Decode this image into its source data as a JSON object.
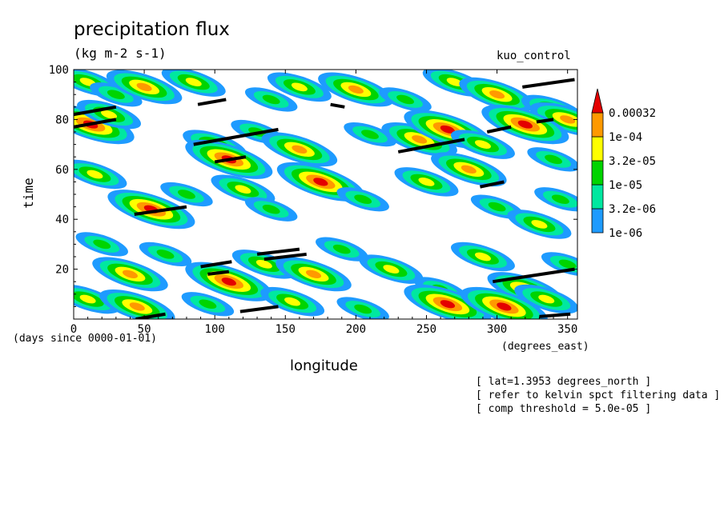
{
  "header": {
    "title": "precipitation flux",
    "units": "(kg m-2 s-1)",
    "run_name": "kuo_control"
  },
  "axes": {
    "xlabel": "longitude",
    "xunits": "(degrees_east)",
    "ylabel": "time",
    "time_units": "(days since 0000-01-01)"
  },
  "notes": {
    "lat": "[ lat=1.3953 degrees_north ]",
    "refer": "[ refer to kelvin spct filtering data ]",
    "threshold": "[ comp threshold = 5.0e-05 ]"
  },
  "chart_data": {
    "type": "heatmap",
    "title": "precipitation flux",
    "xlabel": "longitude",
    "ylabel": "time",
    "xlim": [
      0,
      357
    ],
    "ylim": [
      0,
      100
    ],
    "xticks": [
      0,
      50,
      100,
      150,
      200,
      250,
      300,
      350
    ],
    "yticks": [
      20,
      40,
      60,
      80,
      100
    ],
    "colorbar": {
      "levels": [
        "1e-06",
        "3.2e-06",
        "1e-05",
        "3.2e-05",
        "1e-04",
        "0.00032"
      ],
      "colors": [
        "#1e9bff",
        "#00e8a0",
        "#00d400",
        "#ffff00",
        "#ff9900",
        "#e40000"
      ],
      "extend": "max"
    },
    "contour_blobs": [
      {
        "x": 10,
        "y": 95,
        "level": 3
      },
      {
        "x": 30,
        "y": 90,
        "level": 2
      },
      {
        "x": 50,
        "y": 93,
        "level": 4
      },
      {
        "x": 85,
        "y": 95,
        "level": 3
      },
      {
        "x": 140,
        "y": 88,
        "level": 2
      },
      {
        "x": 160,
        "y": 93,
        "level": 3
      },
      {
        "x": 200,
        "y": 92,
        "level": 4
      },
      {
        "x": 235,
        "y": 88,
        "level": 2
      },
      {
        "x": 270,
        "y": 95,
        "level": 3
      },
      {
        "x": 300,
        "y": 90,
        "level": 4
      },
      {
        "x": 340,
        "y": 84,
        "level": 3
      },
      {
        "x": 350,
        "y": 80,
        "level": 4
      },
      {
        "x": 12,
        "y": 78,
        "level": 5
      },
      {
        "x": 25,
        "y": 82,
        "level": 3
      },
      {
        "x": 100,
        "y": 70,
        "level": 3
      },
      {
        "x": 110,
        "y": 64,
        "level": 5
      },
      {
        "x": 130,
        "y": 75,
        "level": 2
      },
      {
        "x": 160,
        "y": 68,
        "level": 4
      },
      {
        "x": 175,
        "y": 55,
        "level": 5
      },
      {
        "x": 210,
        "y": 74,
        "level": 2
      },
      {
        "x": 245,
        "y": 72,
        "level": 4
      },
      {
        "x": 265,
        "y": 76,
        "level": 5
      },
      {
        "x": 290,
        "y": 70,
        "level": 3
      },
      {
        "x": 320,
        "y": 78,
        "level": 5
      },
      {
        "x": 340,
        "y": 64,
        "level": 2
      },
      {
        "x": 15,
        "y": 58,
        "level": 3
      },
      {
        "x": 55,
        "y": 44,
        "level": 5
      },
      {
        "x": 80,
        "y": 50,
        "level": 2
      },
      {
        "x": 120,
        "y": 52,
        "level": 3
      },
      {
        "x": 140,
        "y": 44,
        "level": 2
      },
      {
        "x": 205,
        "y": 48,
        "level": 2
      },
      {
        "x": 250,
        "y": 55,
        "level": 3
      },
      {
        "x": 280,
        "y": 60,
        "level": 4
      },
      {
        "x": 300,
        "y": 45,
        "level": 2
      },
      {
        "x": 330,
        "y": 38,
        "level": 3
      },
      {
        "x": 345,
        "y": 48,
        "level": 2
      },
      {
        "x": 20,
        "y": 30,
        "level": 2
      },
      {
        "x": 40,
        "y": 18,
        "level": 4
      },
      {
        "x": 65,
        "y": 26,
        "level": 2
      },
      {
        "x": 110,
        "y": 15,
        "level": 5
      },
      {
        "x": 135,
        "y": 22,
        "level": 3
      },
      {
        "x": 170,
        "y": 18,
        "level": 4
      },
      {
        "x": 190,
        "y": 28,
        "level": 2
      },
      {
        "x": 225,
        "y": 20,
        "level": 3
      },
      {
        "x": 260,
        "y": 12,
        "level": 2
      },
      {
        "x": 290,
        "y": 25,
        "level": 3
      },
      {
        "x": 320,
        "y": 12,
        "level": 4
      },
      {
        "x": 350,
        "y": 22,
        "level": 2
      },
      {
        "x": 10,
        "y": 8,
        "level": 3
      },
      {
        "x": 45,
        "y": 5,
        "level": 4
      },
      {
        "x": 95,
        "y": 6,
        "level": 2
      },
      {
        "x": 155,
        "y": 7,
        "level": 3
      },
      {
        "x": 205,
        "y": 4,
        "level": 2
      },
      {
        "x": 265,
        "y": 6,
        "level": 5
      },
      {
        "x": 305,
        "y": 5,
        "level": 5
      },
      {
        "x": 335,
        "y": 8,
        "level": 3
      }
    ],
    "kelvin_segments": [
      {
        "x0": 0,
        "y0": 82,
        "x1": 30,
        "y1": 85
      },
      {
        "x0": 0,
        "y0": 77,
        "x1": 30,
        "y1": 80
      },
      {
        "x0": 88,
        "y0": 86,
        "x1": 108,
        "y1": 88
      },
      {
        "x0": 85,
        "y0": 70,
        "x1": 145,
        "y1": 76
      },
      {
        "x0": 100,
        "y0": 63,
        "x1": 122,
        "y1": 65
      },
      {
        "x0": 43,
        "y0": 42,
        "x1": 80,
        "y1": 45
      },
      {
        "x0": 90,
        "y0": 21,
        "x1": 112,
        "y1": 23
      },
      {
        "x0": 95,
        "y0": 18,
        "x1": 110,
        "y1": 19
      },
      {
        "x0": 130,
        "y0": 26,
        "x1": 160,
        "y1": 28
      },
      {
        "x0": 135,
        "y0": 24,
        "x1": 165,
        "y1": 26
      },
      {
        "x0": 118,
        "y0": 3,
        "x1": 145,
        "y1": 5
      },
      {
        "x0": 182,
        "y0": 86,
        "x1": 192,
        "y1": 85
      },
      {
        "x0": 230,
        "y0": 67,
        "x1": 277,
        "y1": 72
      },
      {
        "x0": 293,
        "y0": 75,
        "x1": 310,
        "y1": 77
      },
      {
        "x0": 288,
        "y0": 53,
        "x1": 305,
        "y1": 55
      },
      {
        "x0": 297,
        "y0": 15,
        "x1": 355,
        "y1": 20
      },
      {
        "x0": 318,
        "y0": 93,
        "x1": 355,
        "y1": 96
      },
      {
        "x0": 328,
        "y0": 79,
        "x1": 340,
        "y1": 80
      },
      {
        "x0": 330,
        "y0": 1,
        "x1": 352,
        "y1": 2
      },
      {
        "x0": 44,
        "y0": 0,
        "x1": 65,
        "y1": 2
      }
    ]
  }
}
